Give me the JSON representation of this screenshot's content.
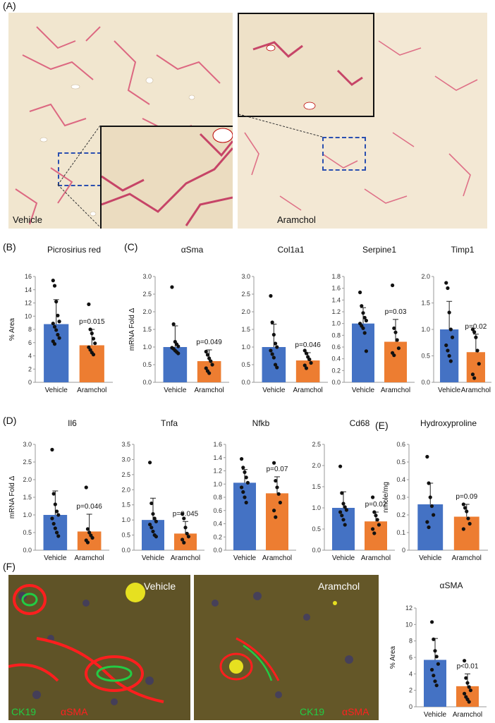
{
  "panels": {
    "A": "(A)",
    "B": "(B)",
    "C": "(C)",
    "D": "(D)",
    "E": "(E)",
    "F": "(F)"
  },
  "panel_a": {
    "left_label": "Vehicle",
    "right_label": "Aramchol"
  },
  "panel_f": {
    "left_label": "Vehicle",
    "right_label": "Aramchol",
    "stain_green": "CK19",
    "stain_red": "αSMA",
    "green_color": "#22cc44",
    "red_color": "#ff2020"
  },
  "colors": {
    "vehicle": "#4472c4",
    "aramchol": "#ed7d31"
  },
  "chart_data": [
    {
      "id": "picro",
      "type": "bar",
      "title": "Picrosirius red",
      "ylabel": "% Area",
      "ylim": [
        0,
        16
      ],
      "yticks": [
        0,
        2,
        4,
        6,
        8,
        10,
        12,
        14,
        16
      ],
      "yticklabels": [
        "0",
        "2",
        "4",
        "6",
        "8",
        "10",
        "12",
        "14",
        "16"
      ],
      "categories": [
        "Vehicle",
        "Aramchol"
      ],
      "values": [
        8.8,
        5.6
      ],
      "errors": [
        3.7,
        2.4
      ],
      "annotation": "p=0.015",
      "points": [
        [
          15.4,
          14.6,
          12.2,
          10.1,
          9.2,
          8.9,
          8.4,
          7.9,
          7.2,
          6.7,
          6.2,
          5.8
        ],
        [
          11.8,
          8.0,
          7.4,
          6.6,
          5.9,
          5.3,
          4.9,
          4.5,
          4.2
        ]
      ]
    },
    {
      "id": "asma",
      "type": "bar",
      "title": "αSma",
      "ylabel": "mRNA Fold Δ",
      "ylim": [
        0,
        3
      ],
      "yticks": [
        0,
        0.5,
        1,
        1.5,
        2,
        2.5,
        3
      ],
      "yticklabels": [
        "0.0",
        "0.5",
        "1.0",
        "1.5",
        "2.0",
        "2.5",
        "3.0"
      ],
      "categories": [
        "Vehicle",
        "Aramchol"
      ],
      "values": [
        1.0,
        0.6
      ],
      "errors": [
        0.6,
        0.32
      ],
      "annotation": "p=0.049",
      "points": [
        [
          2.7,
          1.65,
          1.15,
          1.08,
          1.02,
          0.98,
          0.95,
          0.9,
          0.86,
          0.82
        ],
        [
          0.87,
          0.78,
          0.68,
          0.6,
          0.5,
          0.4,
          0.32,
          0.26
        ]
      ]
    },
    {
      "id": "col1a1",
      "type": "bar",
      "title": "Col1a1",
      "ylabel": "",
      "ylim": [
        0,
        3
      ],
      "yticks": [
        0,
        0.5,
        1,
        1.5,
        2,
        2.5,
        3
      ],
      "yticklabels": [
        "0.0",
        "0.5",
        "1.0",
        "1.5",
        "2.0",
        "2.5",
        "3.0"
      ],
      "categories": [
        "Vehicle",
        "Aramchol"
      ],
      "values": [
        1.0,
        0.62
      ],
      "errors": [
        0.65,
        0.22
      ],
      "annotation": "p=0.046",
      "points": [
        [
          2.45,
          1.7,
          1.35,
          1.1,
          1.0,
          0.9,
          0.8,
          0.7,
          0.5,
          0.42
        ],
        [
          0.9,
          0.82,
          0.72,
          0.65,
          0.55,
          0.48,
          0.4
        ]
      ]
    },
    {
      "id": "serpine1",
      "type": "bar",
      "title": "Serpine1",
      "ylabel": "",
      "ylim": [
        0,
        1.8
      ],
      "yticks": [
        0,
        0.2,
        0.4,
        0.6,
        0.8,
        1,
        1.2,
        1.4,
        1.6,
        1.8
      ],
      "yticklabels": [
        "0.0",
        "0.2",
        "0.4",
        "0.6",
        "0.8",
        "1.0",
        "1.2",
        "1.4",
        "1.6",
        "1.8"
      ],
      "categories": [
        "Vehicle",
        "Aramchol"
      ],
      "values": [
        1.0,
        0.69
      ],
      "errors": [
        0.27,
        0.38
      ],
      "annotation": "p=0.03",
      "points": [
        [
          1.53,
          1.3,
          1.18,
          1.1,
          1.05,
          1.0,
          0.96,
          0.92,
          0.84,
          0.53
        ],
        [
          1.65,
          0.92,
          0.85,
          0.72,
          0.58,
          0.5,
          0.46
        ]
      ]
    },
    {
      "id": "timp1",
      "type": "bar",
      "title": "Timp1",
      "ylabel": "",
      "ylim": [
        0,
        2
      ],
      "yticks": [
        0,
        0.5,
        1,
        1.5,
        2
      ],
      "yticklabels": [
        "0.0",
        "0.5",
        "1.0",
        "1.5",
        "2.0"
      ],
      "categories": [
        "Vehicle",
        "Aramchol"
      ],
      "values": [
        1.0,
        0.57
      ],
      "errors": [
        0.53,
        0.34
      ],
      "annotation": "p=0.02",
      "points": [
        [
          1.88,
          1.78,
          1.32,
          1.0,
          0.85,
          0.7,
          0.6,
          0.5,
          0.4
        ],
        [
          1.0,
          0.95,
          0.85,
          0.6,
          0.35,
          0.15,
          0.08
        ]
      ]
    },
    {
      "id": "il6",
      "type": "bar",
      "title": "Il6",
      "ylabel": "mRNA Fold Δ",
      "ylim": [
        0,
        3
      ],
      "yticks": [
        0,
        0.5,
        1,
        1.5,
        2,
        2.5,
        3
      ],
      "yticklabels": [
        "0.0",
        "0.5",
        "1.0",
        "1.5",
        "2.0",
        "2.5",
        "3.0"
      ],
      "categories": [
        "Vehicle",
        "Aramchol"
      ],
      "values": [
        1.0,
        0.53
      ],
      "errors": [
        0.68,
        0.49
      ],
      "annotation": "p=0.046",
      "points": [
        [
          2.85,
          1.6,
          1.3,
          1.1,
          1.0,
          0.9,
          0.75,
          0.62,
          0.5,
          0.4
        ],
        [
          1.78,
          0.6,
          0.5,
          0.42,
          0.35,
          0.28,
          0.22
        ]
      ]
    },
    {
      "id": "tnfa",
      "type": "bar",
      "title": "Tnfa",
      "ylabel": "",
      "ylim": [
        0,
        3.5
      ],
      "yticks": [
        0,
        0.5,
        1,
        1.5,
        2,
        2.5,
        3,
        3.5
      ],
      "yticklabels": [
        "0.0",
        "0.5",
        "1.0",
        "1.5",
        "2.0",
        "2.5",
        "3.0",
        "3.5"
      ],
      "categories": [
        "Vehicle",
        "Aramchol"
      ],
      "values": [
        1.0,
        0.55
      ],
      "errors": [
        0.72,
        0.4
      ],
      "annotation": "p=0.045",
      "points": [
        [
          2.9,
          1.55,
          1.2,
          1.05,
          0.95,
          0.85,
          0.75,
          0.62,
          0.5,
          0.45
        ],
        [
          1.2,
          1.05,
          0.75,
          0.55,
          0.45,
          0.35,
          0.25
        ]
      ]
    },
    {
      "id": "nfkb",
      "type": "bar",
      "title": "Nfkb",
      "ylabel": "",
      "ylim": [
        0,
        1.6
      ],
      "yticks": [
        0,
        0.2,
        0.4,
        0.6,
        0.8,
        1,
        1.2,
        1.4,
        1.6
      ],
      "yticklabels": [
        "0.0",
        "0.2",
        "0.4",
        "0.6",
        "0.8",
        "1.0",
        "1.2",
        "1.4",
        "1.6"
      ],
      "categories": [
        "Vehicle",
        "Aramchol"
      ],
      "values": [
        1.02,
        0.86
      ],
      "errors": [
        0.2,
        0.25
      ],
      "annotation": "p=0.07",
      "points": [
        [
          1.38,
          1.25,
          1.18,
          1.1,
          1.02,
          0.95,
          0.88,
          0.8,
          0.72
        ],
        [
          1.32,
          1.05,
          0.95,
          0.85,
          0.72,
          0.6,
          0.5
        ]
      ]
    },
    {
      "id": "cd68",
      "type": "bar",
      "title": "Cd68",
      "ylabel": "",
      "ylim": [
        0,
        2.5
      ],
      "yticks": [
        0,
        0.5,
        1,
        1.5,
        2,
        2.5
      ],
      "yticklabels": [
        "0.0",
        "0.5",
        "1.0",
        "1.5",
        "2.0",
        "2.5"
      ],
      "categories": [
        "Vehicle",
        "Aramchol"
      ],
      "values": [
        1.0,
        0.68
      ],
      "errors": [
        0.38,
        0.22
      ],
      "annotation": "p=0.02",
      "points": [
        [
          1.98,
          1.35,
          1.1,
          1.02,
          0.95,
          0.9,
          0.82,
          0.72,
          0.6
        ],
        [
          1.25,
          0.9,
          0.82,
          0.72,
          0.6,
          0.5,
          0.4
        ]
      ]
    },
    {
      "id": "hydroxy",
      "type": "bar",
      "title": "Hydroxyproline",
      "ylabel": "nmole/mg",
      "ylim": [
        0,
        0.6
      ],
      "yticks": [
        0,
        0.1,
        0.2,
        0.3,
        0.4,
        0.5,
        0.6
      ],
      "yticklabels": [
        "0",
        "0.1",
        "0.2",
        "0.3",
        "0.4",
        "0.5",
        "0.6"
      ],
      "categories": [
        "Vehicle",
        "Aramchol"
      ],
      "values": [
        0.26,
        0.19
      ],
      "errors": [
        0.12,
        0.07
      ],
      "annotation": "p=0.09",
      "points": [
        [
          0.53,
          0.38,
          0.3,
          0.25,
          0.2,
          0.16,
          0.13
        ],
        [
          0.26,
          0.24,
          0.22,
          0.18,
          0.15,
          0.12
        ]
      ]
    },
    {
      "id": "fasma",
      "type": "bar",
      "title": "αSMA",
      "ylabel": "% Area",
      "ylim": [
        0,
        12
      ],
      "yticks": [
        0,
        2,
        4,
        6,
        8,
        10,
        12
      ],
      "yticklabels": [
        "0",
        "2",
        "4",
        "6",
        "8",
        "10",
        "12"
      ],
      "categories": [
        "Vehicle",
        "Aramchol"
      ],
      "values": [
        5.7,
        2.5
      ],
      "errors": [
        2.6,
        1.5
      ],
      "annotation": "p<0.01",
      "points": [
        [
          10.3,
          8.2,
          6.8,
          6.1,
          5.2,
          4.5,
          3.8,
          3.1,
          2.6
        ],
        [
          5.6,
          3.5,
          2.9,
          2.4,
          2.0,
          1.6,
          1.2,
          0.9,
          0.6
        ]
      ]
    }
  ]
}
